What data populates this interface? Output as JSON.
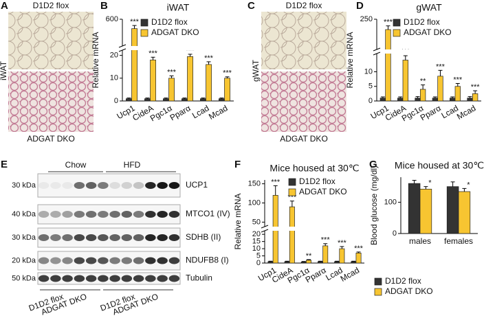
{
  "panel_labels": [
    "A",
    "B",
    "C",
    "D",
    "E",
    "F",
    "G"
  ],
  "histology": [
    {
      "side_label": "iWAT",
      "top_label": "D1D2 flox",
      "bottom_label": "ADGAT DKO"
    },
    {
      "side_label": "gWAT",
      "top_label": "D1D2 flox",
      "bottom_label": "ADGAT DKO"
    }
  ],
  "blot": {
    "groups": [
      "Chow",
      "HFD"
    ],
    "markers": [
      "30 kDa",
      "40 kDa",
      "30 kDa",
      "20 kDa",
      "50 kDa"
    ],
    "proteins": [
      "UCP1",
      "MTCO1 (IV)",
      "SDHB (II)",
      "NDUFB8 (I)",
      "Tubulin"
    ],
    "lanes": [
      "D1D2 flox",
      "ADGAT DKO",
      "D1D2 flox",
      "ADGAT DKO"
    ]
  },
  "chart_data": [
    {
      "type": "bar",
      "title": "iWAT",
      "ylabel": "Relative mRNA",
      "legend": "upper left",
      "categories": [
        "Ucp1",
        "CideA",
        "Pgc1α",
        "Pparα",
        "Lcad",
        "Mcad"
      ],
      "segments": [
        {
          "ylim": [
            0,
            22
          ],
          "yticks": [
            0,
            10,
            20
          ]
        },
        {
          "ylim": [
            100,
            600
          ],
          "yticks": [
            600
          ]
        }
      ],
      "series": [
        {
          "name": "D1D2 flox",
          "color": "#333333",
          "values": [
            1,
            1,
            1,
            1,
            1,
            1
          ],
          "errors": [
            0.3,
            0.3,
            0.3,
            0.3,
            0.3,
            0.3
          ]
        },
        {
          "name": "ADGAT DKO",
          "color": "#f7c531",
          "values": [
            420,
            18,
            10,
            19.5,
            16,
            10
          ],
          "errors": [
            60,
            1.2,
            1,
            1,
            1.2,
            0.6
          ],
          "significance": [
            "***",
            "***",
            "***",
            "***",
            "***",
            "***"
          ]
        }
      ]
    },
    {
      "type": "bar",
      "title": "gWAT",
      "ylabel": "Relative mRNA",
      "legend": "upper left",
      "categories": [
        "Ucp1",
        "CideA",
        "Pgc1α",
        "Pparα",
        "Lcad",
        "Mcad"
      ],
      "segments": [
        {
          "ylim": [
            0,
            16
          ],
          "yticks": [
            0,
            5,
            10
          ]
        },
        {
          "ylim": [
            50,
            250
          ],
          "yticks": [
            250
          ]
        }
      ],
      "series": [
        {
          "name": "D1D2 flox",
          "color": "#333333",
          "values": [
            1,
            1,
            1,
            1,
            1,
            1
          ],
          "errors": [
            0.4,
            0.4,
            0.5,
            0.4,
            0.4,
            0.5
          ]
        },
        {
          "name": "ADGAT DKO",
          "color": "#f7c531",
          "values": [
            180,
            14,
            4,
            8.5,
            5,
            2.5
          ],
          "errors": [
            25,
            1.5,
            1.5,
            2,
            1,
            1
          ],
          "significance": [
            "***",
            "***",
            "**",
            "***",
            "***",
            "***"
          ]
        }
      ]
    },
    {
      "type": "bar",
      "title": "Mice housed at 30℃",
      "ylabel": "Relative mRNA",
      "legend": "upper left",
      "categories": [
        "Ucp1",
        "CideA",
        "Pgc1α",
        "Pparα",
        "Lcad",
        "Mcad"
      ],
      "segments": [
        {
          "ylim": [
            0,
            22
          ],
          "yticks": [
            0,
            5,
            10,
            15,
            20
          ]
        },
        {
          "ylim": [
            40,
            160
          ],
          "yticks": [
            50,
            100,
            150
          ]
        }
      ],
      "series": [
        {
          "name": "D1D2 flox",
          "color": "#333333",
          "values": [
            1,
            1,
            0.8,
            1,
            1,
            1
          ],
          "errors": [
            0.3,
            0.3,
            0.3,
            0.3,
            0.3,
            0.3
          ]
        },
        {
          "name": "ADGAT DKO",
          "color": "#f7c531",
          "values": [
            120,
            90,
            2,
            12,
            10,
            7
          ],
          "errors": [
            25,
            15,
            0.4,
            1.5,
            1.5,
            0.7
          ],
          "significance": [
            "***",
            "***",
            "**",
            "***",
            "***",
            "***"
          ]
        }
      ]
    },
    {
      "type": "bar",
      "title": "Mice housed at 30℃",
      "ylabel": "Blood glucose (mg/dl)",
      "legend": "below",
      "categories": [
        "males",
        "females"
      ],
      "segments": [
        {
          "ylim": [
            0,
            180
          ],
          "yticks": [
            0,
            100
          ]
        }
      ],
      "series": [
        {
          "name": "D1D2 flox",
          "color": "#333333",
          "values": [
            160,
            150
          ],
          "errors": [
            10,
            15
          ]
        },
        {
          "name": "ADGAT DKO",
          "color": "#f7c531",
          "values": [
            142,
            134
          ],
          "errors": [
            8,
            10
          ],
          "significance": [
            "*",
            "*"
          ]
        }
      ]
    }
  ]
}
